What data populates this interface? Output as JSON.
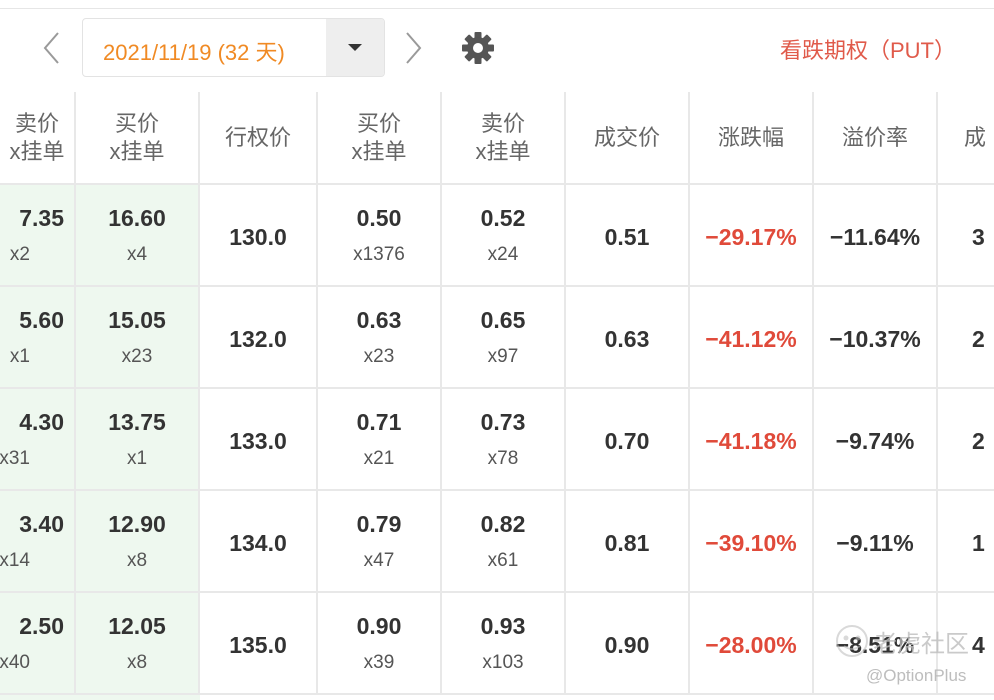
{
  "toolbar": {
    "expiry_label": "2021/11/19 (32 天)",
    "option_type_label": "看跌期权（PUT）",
    "prev_icon": "chevron-left-icon",
    "next_icon": "chevron-right-icon",
    "dropdown_icon": "caret-down-icon",
    "settings_icon": "gear-icon"
  },
  "table": {
    "headers": {
      "col_ask_left": [
        "卖价",
        "x挂单"
      ],
      "col_bid_left": [
        "买价",
        "x挂单"
      ],
      "col_strike": "行权价",
      "col_bid_right": [
        "买价",
        "x挂单"
      ],
      "col_ask_right": [
        "卖价",
        "x挂单"
      ],
      "col_last": "成交价",
      "col_change": "涨跌幅",
      "col_premium": "溢价率",
      "col_partial": "成"
    },
    "rows": [
      {
        "ask_left": "7.35",
        "ask_left_size": "x2",
        "bid_left": "16.60",
        "bid_left_size": "x4",
        "strike": "130.0",
        "bid_right": "0.50",
        "bid_right_size": "x1376",
        "ask_right": "0.52",
        "ask_right_size": "x24",
        "last": "0.51",
        "change": "−29.17%",
        "premium": "−11.64%",
        "partial": "3"
      },
      {
        "ask_left": "5.60",
        "ask_left_size": "x1",
        "bid_left": "15.05",
        "bid_left_size": "x23",
        "strike": "132.0",
        "bid_right": "0.63",
        "bid_right_size": "x23",
        "ask_right": "0.65",
        "ask_right_size": "x97",
        "last": "0.63",
        "change": "−41.12%",
        "premium": "−10.37%",
        "partial": "2"
      },
      {
        "ask_left": "4.30",
        "ask_left_size": "x31",
        "bid_left": "13.75",
        "bid_left_size": "x1",
        "strike": "133.0",
        "bid_right": "0.71",
        "bid_right_size": "x21",
        "ask_right": "0.73",
        "ask_right_size": "x78",
        "last": "0.70",
        "change": "−41.18%",
        "premium": "−9.74%",
        "partial": "2"
      },
      {
        "ask_left": "3.40",
        "ask_left_size": "x14",
        "bid_left": "12.90",
        "bid_left_size": "x8",
        "strike": "134.0",
        "bid_right": "0.79",
        "bid_right_size": "x47",
        "ask_right": "0.82",
        "ask_right_size": "x61",
        "last": "0.81",
        "change": "−39.10%",
        "premium": "−9.11%",
        "partial": "1"
      },
      {
        "ask_left": "2.50",
        "ask_left_size": "x40",
        "bid_left": "12.05",
        "bid_left_size": "x8",
        "strike": "135.0",
        "bid_right": "0.90",
        "bid_right_size": "x39",
        "ask_right": "0.93",
        "ask_right_size": "x103",
        "last": "0.90",
        "change": "−28.00%",
        "premium": "−8.51%",
        "partial": "4"
      }
    ]
  },
  "watermark": {
    "name": "老虎社区",
    "handle": "@OptionPlus"
  },
  "colors": {
    "expiry_text": "#f08a24",
    "negative": "#e04a3a",
    "put_label": "#e05a4a",
    "itm_background": "#eef8ef"
  }
}
